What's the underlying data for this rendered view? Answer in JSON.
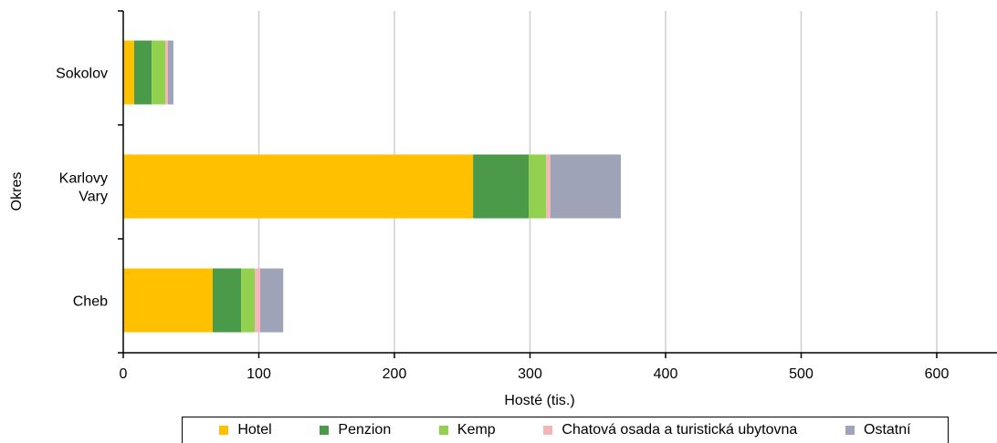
{
  "chart_data": {
    "type": "bar",
    "orientation": "horizontal",
    "stacked": true,
    "categories": [
      "Sokolov",
      "Karlovy Vary",
      "Cheb"
    ],
    "category_lines": [
      [
        "Sokolov"
      ],
      [
        "Karlovy",
        "Vary"
      ],
      [
        "Cheb"
      ]
    ],
    "series": [
      {
        "name": "Hotel",
        "color": "#FFC000",
        "values": [
          8,
          258,
          66
        ]
      },
      {
        "name": "Penzion",
        "color": "#4A9A4A",
        "values": [
          13,
          41,
          21
        ]
      },
      {
        "name": "Kemp",
        "color": "#92D050",
        "values": [
          10,
          13,
          10
        ]
      },
      {
        "name": "Chatová osada a turistická ubytovna",
        "color": "#F4B6B8",
        "values": [
          2,
          3,
          4
        ]
      },
      {
        "name": "Ostatní",
        "color": "#9EA3B7",
        "values": [
          4,
          52,
          17
        ]
      }
    ],
    "xlabel": "Hosté (tis.)",
    "ylabel": "Okres",
    "xlim": [
      0,
      650
    ],
    "xticks": [
      0,
      100,
      200,
      300,
      400,
      500,
      600
    ],
    "grid": "vertical",
    "legend_position": "bottom"
  }
}
